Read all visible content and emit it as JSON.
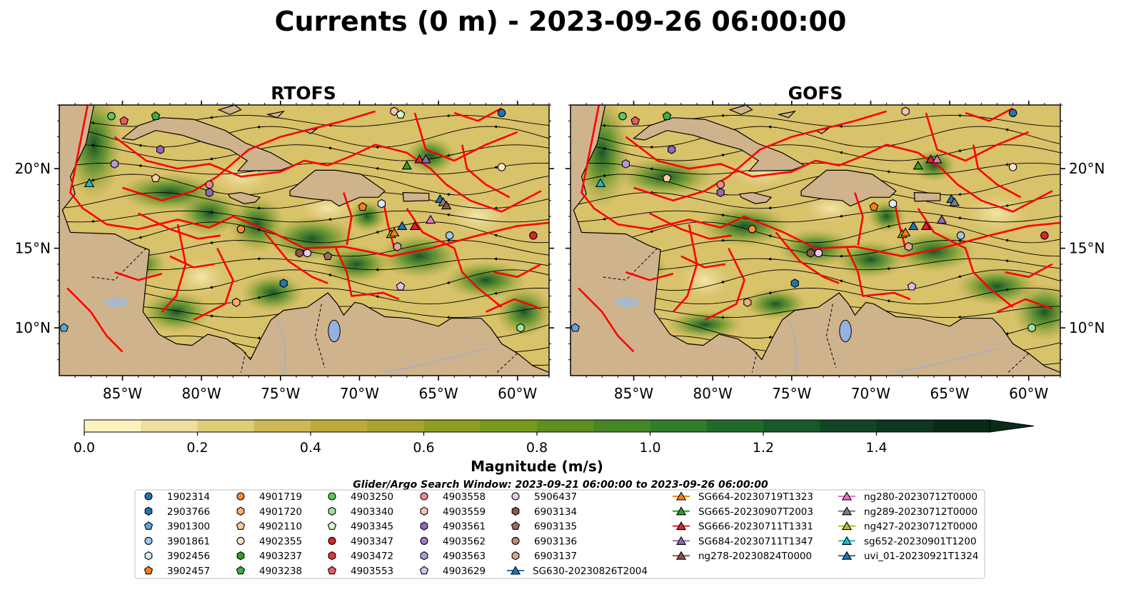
{
  "figure": {
    "title": "Currents (0 m) - 2023-09-26 06:00:00",
    "legend_title": "Glider/Argo Search Window: 2023-09-21 06:00:00 to 2023-09-26 06:00:00"
  },
  "colors": {
    "land": "#cfb38c",
    "boundary": "#ff0000",
    "streamline": "#000000",
    "lake": "#94b2e0"
  },
  "chart_data": [
    {
      "type": "heatmap",
      "title": "RTOFS",
      "lon_range": [
        -89,
        -58
      ],
      "lat_range": [
        7,
        24
      ],
      "lon_ticks": [
        "85°W",
        "80°W",
        "75°W",
        "70°W",
        "65°W",
        "60°W"
      ],
      "lat_ticks": [
        "10°N",
        "15°N",
        "20°N"
      ],
      "streamlines": true,
      "floats": [
        {
          "id": "1902314",
          "lon": -61.0,
          "lat": 23.5
        },
        {
          "id": "4903250",
          "lon": -85.7,
          "lat": 23.3
        },
        {
          "id": "4903238",
          "lon": -82.9,
          "lat": 23.3
        },
        {
          "id": "4903553",
          "lon": -84.9,
          "lat": 23.0
        },
        {
          "id": "4903559",
          "lon": -67.8,
          "lat": 23.6
        },
        {
          "id": "4903345",
          "lon": -67.4,
          "lat": 23.4
        },
        {
          "id": "4903563",
          "lon": -85.5,
          "lat": 20.3
        },
        {
          "id": "4903561",
          "lon": -82.6,
          "lat": 21.2
        },
        {
          "id": "4902110",
          "lon": -82.9,
          "lat": 19.4
        },
        {
          "id": "4903558",
          "lon": -79.5,
          "lat": 19.0
        },
        {
          "id": "4903561",
          "lon": -79.5,
          "lat": 18.5
        },
        {
          "id": "4902355",
          "lon": -61.0,
          "lat": 20.1
        },
        {
          "id": "3902457",
          "lon": -69.8,
          "lat": 17.6
        },
        {
          "id": "3902456",
          "lon": -68.6,
          "lat": 17.8
        },
        {
          "id": "4901719",
          "lon": -77.5,
          "lat": 16.2
        },
        {
          "id": "3901861",
          "lon": -64.3,
          "lat": 15.8
        },
        {
          "id": "4903347",
          "lon": -59.0,
          "lat": 15.8
        },
        {
          "id": "6903137",
          "lon": -67.6,
          "lat": 15.1
        },
        {
          "id": "6903134",
          "lon": -73.8,
          "lat": 14.7
        },
        {
          "id": "5906437",
          "lon": -73.3,
          "lat": 14.7
        },
        {
          "id": "6903135",
          "lon": -72.0,
          "lat": 14.5
        },
        {
          "id": "2903766",
          "lon": -74.8,
          "lat": 12.8
        },
        {
          "id": "4903629",
          "lon": -67.4,
          "lat": 12.6
        },
        {
          "id": "4901720",
          "lon": -77.8,
          "lat": 11.6
        },
        {
          "id": "4903340",
          "lon": -59.8,
          "lat": 10.0
        },
        {
          "id": "3901300",
          "lon": -88.7,
          "lat": 10.0
        }
      ],
      "gliders": [
        {
          "id": "SG665-20230907T2003",
          "lon": -67.0,
          "lat": 20.2
        },
        {
          "id": "SG666-20230711T1331",
          "lon": -66.2,
          "lat": 20.6
        },
        {
          "id": "SG684-20230711T1347",
          "lon": -65.8,
          "lat": 20.6
        },
        {
          "id": "sg652-20230901T1200",
          "lon": -87.1,
          "lat": 19.1
        },
        {
          "id": "uvi_01-20230921T1324",
          "lon": -64.9,
          "lat": 18.1
        },
        {
          "id": "ng289-20230712T0000",
          "lon": -64.7,
          "lat": 17.9
        },
        {
          "id": "ng278-20230824T0000",
          "lon": -64.5,
          "lat": 17.7
        },
        {
          "id": "ng427-20230712T0000",
          "lon": -68.0,
          "lat": 15.9
        },
        {
          "id": "SG664-20230719T1323",
          "lon": -67.8,
          "lat": 16.0
        },
        {
          "id": "SG630-20230826T2004",
          "lon": -67.3,
          "lat": 16.4
        },
        {
          "id": "SG666-20230711T1331",
          "lon": -66.5,
          "lat": 16.4
        },
        {
          "id": "ng280-20230712T0000",
          "lon": -65.5,
          "lat": 16.8
        }
      ]
    },
    {
      "type": "heatmap",
      "title": "GOFS",
      "lon_range": [
        -89,
        -58
      ],
      "lat_range": [
        7,
        24
      ],
      "lon_ticks": [
        "85°W",
        "80°W",
        "75°W",
        "70°W",
        "65°W",
        "60°W"
      ],
      "lat_ticks": [
        "10°N",
        "15°N",
        "20°N"
      ],
      "streamlines": true,
      "floats": [
        {
          "id": "1902314",
          "lon": -61.0,
          "lat": 23.5
        },
        {
          "id": "4903250",
          "lon": -85.7,
          "lat": 23.3
        },
        {
          "id": "4903238",
          "lon": -82.9,
          "lat": 23.3
        },
        {
          "id": "4903553",
          "lon": -84.9,
          "lat": 23.0
        },
        {
          "id": "4903559",
          "lon": -67.8,
          "lat": 23.6
        },
        {
          "id": "4903563",
          "lon": -85.5,
          "lat": 20.3
        },
        {
          "id": "4903561",
          "lon": -82.6,
          "lat": 21.2
        },
        {
          "id": "4902110",
          "lon": -82.9,
          "lat": 19.4
        },
        {
          "id": "4903558",
          "lon": -79.5,
          "lat": 19.0
        },
        {
          "id": "4903561",
          "lon": -79.5,
          "lat": 18.5
        },
        {
          "id": "4902355",
          "lon": -61.0,
          "lat": 20.1
        },
        {
          "id": "3902457",
          "lon": -69.8,
          "lat": 17.6
        },
        {
          "id": "3902456",
          "lon": -68.6,
          "lat": 17.8
        },
        {
          "id": "4901719",
          "lon": -77.5,
          "lat": 16.2
        },
        {
          "id": "3901861",
          "lon": -64.3,
          "lat": 15.8
        },
        {
          "id": "4903347",
          "lon": -59.0,
          "lat": 15.8
        },
        {
          "id": "6903137",
          "lon": -67.6,
          "lat": 15.1
        },
        {
          "id": "6903134",
          "lon": -73.8,
          "lat": 14.7
        },
        {
          "id": "5906437",
          "lon": -73.3,
          "lat": 14.7
        },
        {
          "id": "2903766",
          "lon": -74.8,
          "lat": 12.8
        },
        {
          "id": "4903629",
          "lon": -67.4,
          "lat": 12.6
        },
        {
          "id": "4901720",
          "lon": -77.8,
          "lat": 11.6
        },
        {
          "id": "4903340",
          "lon": -59.8,
          "lat": 10.0
        },
        {
          "id": "3901300",
          "lon": -88.7,
          "lat": 10.0
        }
      ],
      "gliders": [
        {
          "id": "SG665-20230907T2003",
          "lon": -67.0,
          "lat": 20.2
        },
        {
          "id": "SG666-20230711T1331",
          "lon": -66.2,
          "lat": 20.6
        },
        {
          "id": "ng280-20230712T0000",
          "lon": -65.8,
          "lat": 20.6
        },
        {
          "id": "sg652-20230901T1200",
          "lon": -87.1,
          "lat": 19.1
        },
        {
          "id": "uvi_01-20230921T1324",
          "lon": -64.9,
          "lat": 18.1
        },
        {
          "id": "ng289-20230712T0000",
          "lon": -64.7,
          "lat": 17.9
        },
        {
          "id": "ng427-20230712T0000",
          "lon": -68.0,
          "lat": 15.9
        },
        {
          "id": "SG664-20230719T1323",
          "lon": -67.8,
          "lat": 16.0
        },
        {
          "id": "SG630-20230826T2004",
          "lon": -67.3,
          "lat": 16.4
        },
        {
          "id": "SG666-20230711T1331",
          "lon": -66.5,
          "lat": 16.4
        },
        {
          "id": "SG684-20230711T1347",
          "lon": -65.5,
          "lat": 16.8
        }
      ]
    }
  ],
  "colorbar": {
    "label": "Magnitude (m/s)",
    "min": 0.0,
    "max": 1.6,
    "extend": "max",
    "ticks": [
      "0.0",
      "0.2",
      "0.4",
      "0.6",
      "0.8",
      "1.0",
      "1.2",
      "1.4"
    ],
    "tick_values": [
      0,
      0.2,
      0.4,
      0.6,
      0.8,
      1.0,
      1.2,
      1.4
    ],
    "colors": [
      "#fbf3bf",
      "#efdf9c",
      "#dfcc77",
      "#cdb955",
      "#bcaa3a",
      "#a9a42b",
      "#8f9d20",
      "#789a1d",
      "#5e9020",
      "#468626",
      "#2f7d2a",
      "#1f6b2b",
      "#17592a",
      "#114525",
      "#0e3620",
      "#0a2a18"
    ]
  },
  "legend": {
    "floats": [
      {
        "id": "1902314",
        "color": "#1f77b4",
        "marker": "circle"
      },
      {
        "id": "2903766",
        "color": "#1f77b4",
        "marker": "hexagon"
      },
      {
        "id": "3901300",
        "color": "#5ea5d8",
        "marker": "pentagon"
      },
      {
        "id": "3901861",
        "color": "#9cc9f0",
        "marker": "circle"
      },
      {
        "id": "3902456",
        "color": "#d4ecff",
        "marker": "hexagon"
      },
      {
        "id": "3902457",
        "color": "#ff7f0e",
        "marker": "pentagon"
      },
      {
        "id": "4901719",
        "color": "#ff8c2e",
        "marker": "circle"
      },
      {
        "id": "4901720",
        "color": "#ffae6e",
        "marker": "hexagon"
      },
      {
        "id": "4902110",
        "color": "#ffcc99",
        "marker": "pentagon"
      },
      {
        "id": "4902355",
        "color": "#ffe4cc",
        "marker": "circle"
      },
      {
        "id": "4903237",
        "color": "#2ca02c",
        "marker": "hexagon"
      },
      {
        "id": "4903238",
        "color": "#3cb043",
        "marker": "pentagon"
      },
      {
        "id": "4903250",
        "color": "#5cc95c",
        "marker": "circle"
      },
      {
        "id": "4903340",
        "color": "#98e898",
        "marker": "hexagon"
      },
      {
        "id": "4903345",
        "color": "#d8f8d0",
        "marker": "pentagon"
      },
      {
        "id": "4903347",
        "color": "#d62728",
        "marker": "circle"
      },
      {
        "id": "4903472",
        "color": "#e0393a",
        "marker": "hexagon"
      },
      {
        "id": "4903553",
        "color": "#ee5b5b",
        "marker": "pentagon"
      },
      {
        "id": "4903558",
        "color": "#f08a8a",
        "marker": "circle"
      },
      {
        "id": "4903559",
        "color": "#f8c0c0",
        "marker": "hexagon"
      },
      {
        "id": "4903561",
        "color": "#9467bd",
        "marker": "hexagon"
      },
      {
        "id": "4903562",
        "color": "#a47ccb",
        "marker": "circle"
      },
      {
        "id": "4903563",
        "color": "#b59ad8",
        "marker": "hexagon"
      },
      {
        "id": "4903629",
        "color": "#d7bff0",
        "marker": "pentagon"
      },
      {
        "id": "5906437",
        "color": "#e8c8f8",
        "marker": "circle"
      },
      {
        "id": "6903134",
        "color": "#8c564b",
        "marker": "hexagon"
      },
      {
        "id": "6903135",
        "color": "#9c6a5c",
        "marker": "pentagon"
      },
      {
        "id": "6903136",
        "color": "#c0887a",
        "marker": "circle"
      },
      {
        "id": "6903137",
        "color": "#dba79a",
        "marker": "hexagon"
      }
    ],
    "gliders": [
      {
        "id": "SG630-20230826T2004",
        "color": "#1f77b4"
      },
      {
        "id": "SG664-20230719T1323",
        "color": "#ff7f0e"
      },
      {
        "id": "SG665-20230907T2003",
        "color": "#2ca02c"
      },
      {
        "id": "SG666-20230711T1331",
        "color": "#d62728"
      },
      {
        "id": "SG684-20230711T1347",
        "color": "#9467bd"
      },
      {
        "id": "ng278-20230824T0000",
        "color": "#8c564b"
      },
      {
        "id": "ng280-20230712T0000",
        "color": "#e377c2"
      },
      {
        "id": "ng289-20230712T0000",
        "color": "#7f7f7f"
      },
      {
        "id": "ng427-20230712T0000",
        "color": "#bcbd22"
      },
      {
        "id": "sg652-20230901T1200",
        "color": "#17becf"
      },
      {
        "id": "uvi_01-20230921T1324",
        "color": "#1f77b4"
      }
    ]
  }
}
